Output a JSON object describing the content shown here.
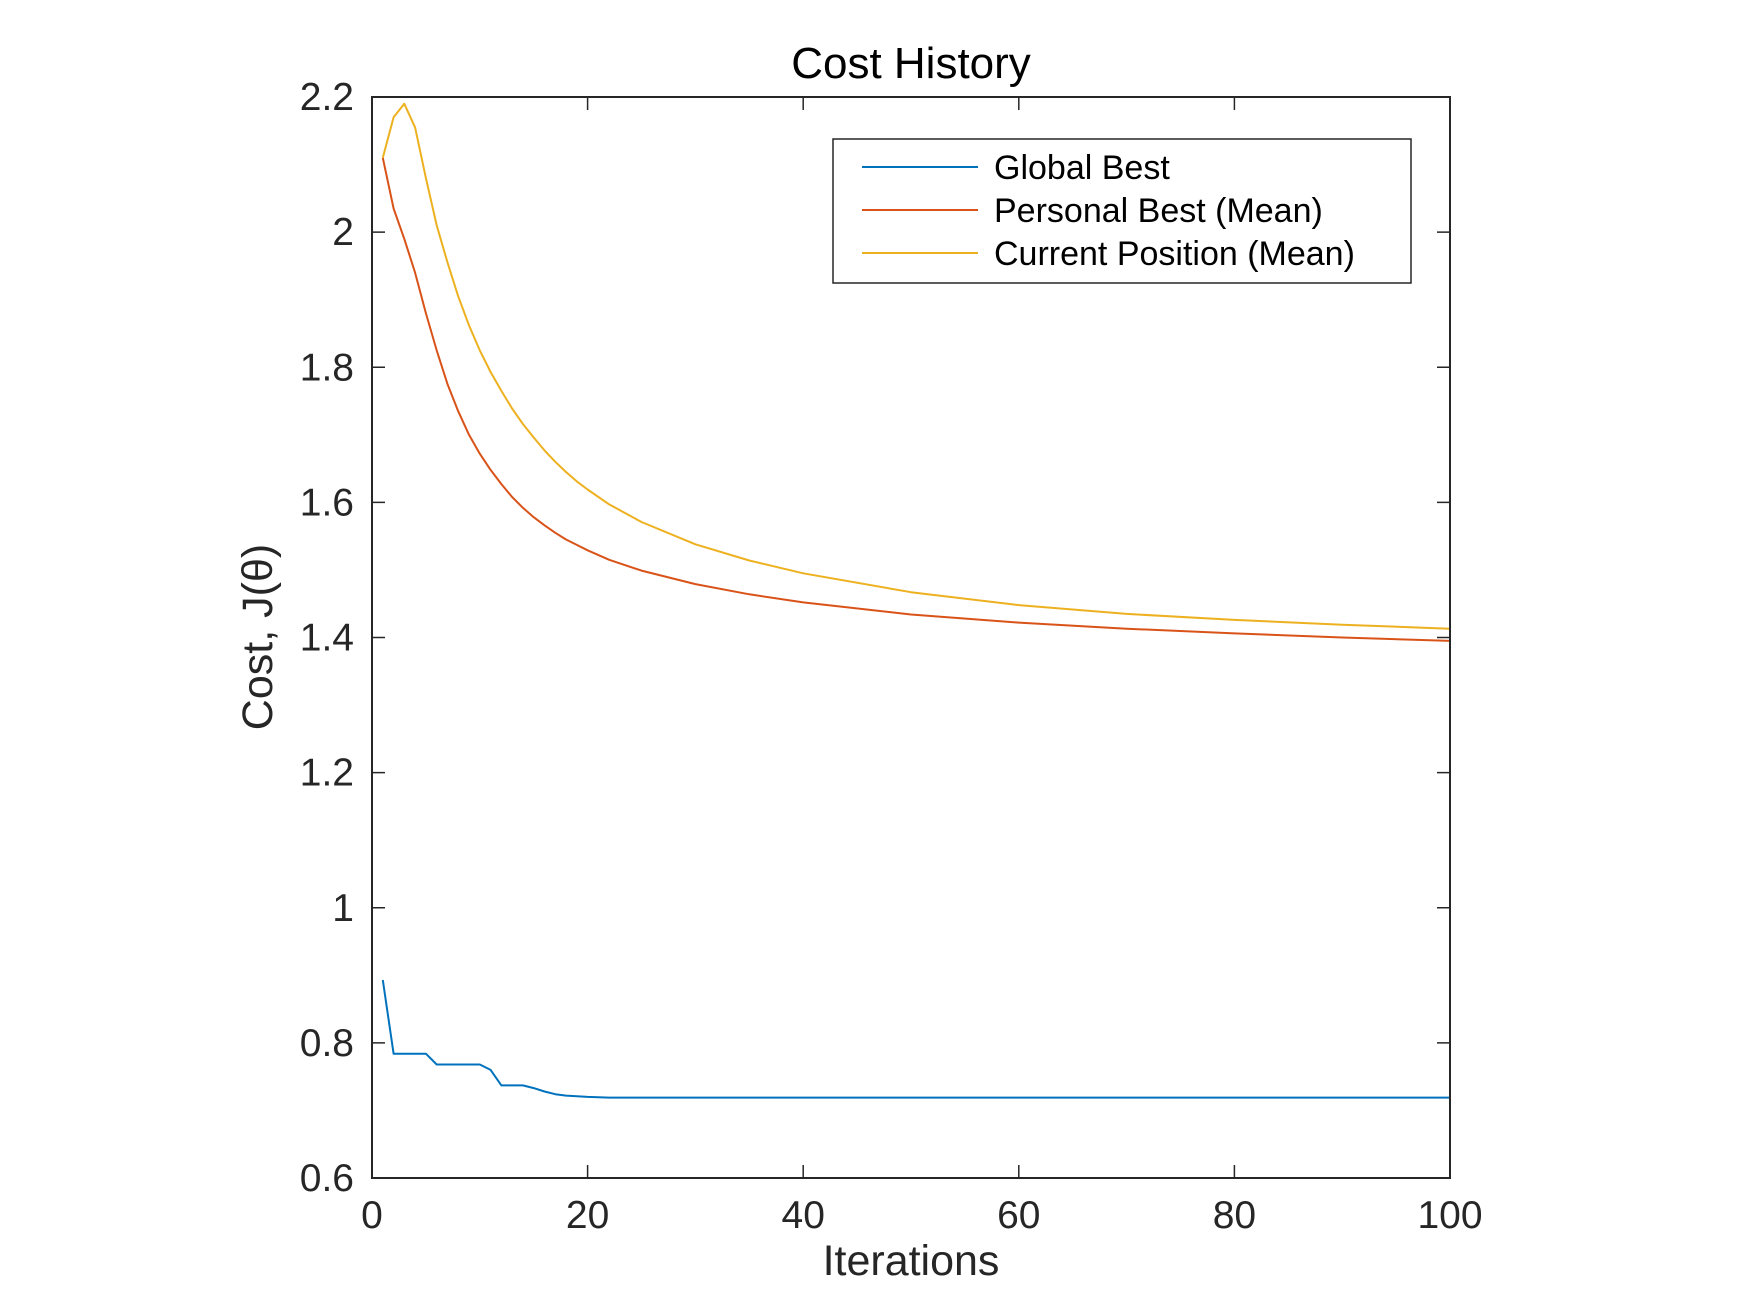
{
  "chart_data": {
    "type": "line",
    "title": "Cost History",
    "xlabel": "Iterations",
    "ylabel": "Cost, J(θ)",
    "xlim": [
      0,
      100
    ],
    "ylim": [
      0.6,
      2.2
    ],
    "xticks": [
      0,
      20,
      40,
      60,
      80,
      100
    ],
    "xtick_labels": [
      "0",
      "20",
      "40",
      "60",
      "80",
      "100"
    ],
    "yticks": [
      0.6,
      0.8,
      1,
      1.2,
      1.4,
      1.6,
      1.8,
      2,
      2.2
    ],
    "ytick_labels": [
      "0.6",
      "0.8",
      "1",
      "1.2",
      "1.4",
      "1.6",
      "1.8",
      "2",
      "2.2"
    ],
    "grid": false,
    "legend_position": "top-right",
    "series": [
      {
        "name": "Global Best",
        "color": "#0072BD",
        "x": [
          1,
          2,
          3,
          4,
          5,
          6,
          7,
          8,
          9,
          10,
          11,
          12,
          13,
          14,
          15,
          16,
          17,
          18,
          19,
          20,
          22,
          25,
          30,
          40,
          50,
          60,
          70,
          80,
          90,
          100
        ],
        "y": [
          0.893,
          0.784,
          0.784,
          0.784,
          0.784,
          0.768,
          0.768,
          0.768,
          0.768,
          0.768,
          0.76,
          0.737,
          0.737,
          0.737,
          0.733,
          0.728,
          0.724,
          0.722,
          0.721,
          0.72,
          0.719,
          0.719,
          0.719,
          0.719,
          0.719,
          0.719,
          0.719,
          0.719,
          0.719,
          0.719
        ]
      },
      {
        "name": "Personal Best (Mean)",
        "color": "#D95319",
        "x": [
          1,
          2,
          3,
          4,
          5,
          6,
          7,
          8,
          9,
          10,
          11,
          12,
          13,
          14,
          15,
          16,
          17,
          18,
          19,
          20,
          22,
          25,
          30,
          35,
          40,
          50,
          60,
          70,
          80,
          90,
          100
        ],
        "y": [
          2.11,
          2.035,
          1.99,
          1.94,
          1.88,
          1.825,
          1.775,
          1.735,
          1.7,
          1.672,
          1.648,
          1.627,
          1.608,
          1.592,
          1.578,
          1.566,
          1.555,
          1.545,
          1.537,
          1.529,
          1.515,
          1.499,
          1.479,
          1.464,
          1.452,
          1.434,
          1.422,
          1.413,
          1.406,
          1.4,
          1.395
        ]
      },
      {
        "name": "Current Position (Mean)",
        "color": "#EDB120",
        "x": [
          1,
          2,
          3,
          4,
          5,
          6,
          7,
          8,
          9,
          10,
          11,
          12,
          13,
          14,
          15,
          16,
          17,
          18,
          19,
          20,
          22,
          25,
          30,
          35,
          40,
          50,
          60,
          70,
          80,
          90,
          100
        ],
        "y": [
          2.11,
          2.17,
          2.19,
          2.155,
          2.08,
          2.01,
          1.955,
          1.905,
          1.862,
          1.825,
          1.793,
          1.765,
          1.739,
          1.716,
          1.696,
          1.677,
          1.66,
          1.645,
          1.631,
          1.619,
          1.597,
          1.571,
          1.538,
          1.514,
          1.495,
          1.467,
          1.448,
          1.435,
          1.426,
          1.419,
          1.413
        ]
      }
    ]
  }
}
